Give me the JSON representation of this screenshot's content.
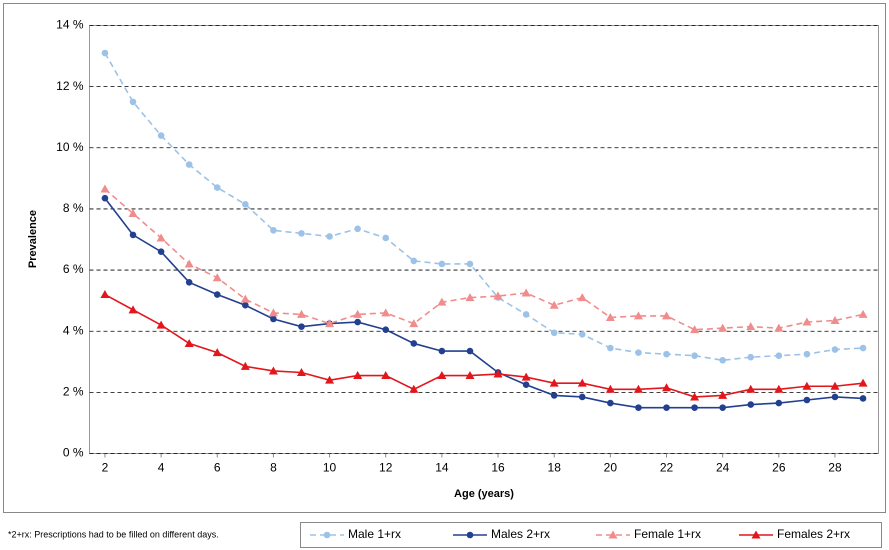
{
  "chart_data": {
    "type": "line",
    "y_label": "Prevalence",
    "x_label": "Age (years)",
    "footnote": "*2+rx: Prescriptions had to be filled on different days.",
    "x": [
      2,
      3,
      4,
      5,
      6,
      7,
      8,
      9,
      10,
      11,
      12,
      13,
      14,
      15,
      16,
      17,
      18,
      19,
      20,
      21,
      22,
      23,
      24,
      25,
      26,
      27,
      28,
      29
    ],
    "xlim": [
      1.45,
      29.55
    ],
    "xticks": [
      2,
      4,
      6,
      8,
      10,
      12,
      14,
      16,
      18,
      20,
      22,
      24,
      26,
      28
    ],
    "ylim": [
      0,
      14
    ],
    "yticks": [
      {
        "value": 0,
        "label": "0 %"
      },
      {
        "value": 2,
        "label": "2 %"
      },
      {
        "value": 4,
        "label": "4 %"
      },
      {
        "value": 6,
        "label": "6 %"
      },
      {
        "value": 8,
        "label": "8 %"
      },
      {
        "value": 10,
        "label": "10 %"
      },
      {
        "value": 12,
        "label": "12 %"
      },
      {
        "value": 14,
        "label": "14 %"
      }
    ],
    "grid": true,
    "legend": "bottom",
    "series": [
      {
        "name": "Male 1+rx",
        "color": "#9cc2e8",
        "dashed": true,
        "marker": "circle",
        "values": [
          13.1,
          11.5,
          10.4,
          9.45,
          8.7,
          8.15,
          7.3,
          7.2,
          7.1,
          7.35,
          7.05,
          6.3,
          6.2,
          6.2,
          5.1,
          4.55,
          3.95,
          3.9,
          3.45,
          3.3,
          3.25,
          3.2,
          3.05,
          3.15,
          3.2,
          3.25,
          3.4,
          3.45
        ]
      },
      {
        "name": "Males 2+rx",
        "color": "#22408f",
        "dashed": false,
        "marker": "circle",
        "values": [
          8.35,
          7.15,
          6.6,
          5.6,
          5.2,
          4.85,
          4.4,
          4.15,
          4.25,
          4.3,
          4.05,
          3.6,
          3.35,
          3.35,
          2.65,
          2.25,
          1.9,
          1.85,
          1.65,
          1.5,
          1.5,
          1.5,
          1.5,
          1.6,
          1.65,
          1.75,
          1.85,
          1.8
        ]
      },
      {
        "name": "Female 1+rx",
        "color": "#f08c8c",
        "dashed": true,
        "marker": "triangle",
        "values": [
          8.65,
          7.85,
          7.05,
          6.2,
          5.75,
          5.05,
          4.6,
          4.55,
          4.25,
          4.55,
          4.6,
          4.25,
          4.95,
          5.1,
          5.15,
          5.25,
          4.85,
          5.1,
          4.45,
          4.5,
          4.5,
          4.05,
          4.1,
          4.15,
          4.1,
          4.3,
          4.35,
          4.55
        ]
      },
      {
        "name": "Females 2+rx",
        "color": "#e3161b",
        "dashed": false,
        "marker": "triangle",
        "values": [
          5.2,
          4.7,
          4.2,
          3.6,
          3.3,
          2.85,
          2.7,
          2.65,
          2.4,
          2.55,
          2.55,
          2.1,
          2.55,
          2.55,
          2.6,
          2.5,
          2.3,
          2.3,
          2.1,
          2.1,
          2.15,
          1.85,
          1.9,
          2.1,
          2.1,
          2.2,
          2.2,
          2.3
        ]
      }
    ]
  }
}
